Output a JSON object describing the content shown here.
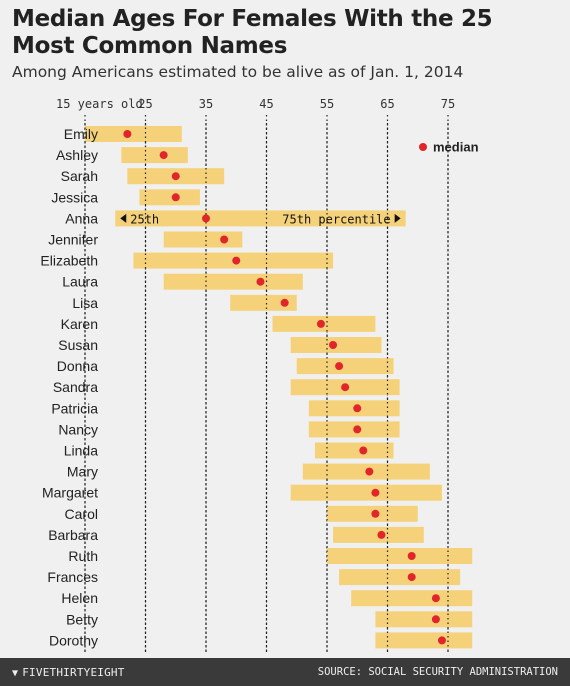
{
  "title": "Median Ages For Females With the 25 Most Common Names",
  "subtitle": "Among Americans estimated to be alive as of Jan. 1, 2014",
  "footer": {
    "brand": "FIVETHIRTYEIGHT",
    "source": "SOURCE: SOCIAL SECURITY ADMINISTRATION"
  },
  "colors": {
    "bar": "#f5d27a",
    "median_dot": "#e0262b",
    "background": "#f0f0f0",
    "footer": "#3a3a3a"
  },
  "chart_data": {
    "type": "bar",
    "orientation": "horizontal-range",
    "x_ticks": [
      {
        "value": 15,
        "label": "15 years old"
      },
      {
        "value": 25,
        "label": "25"
      },
      {
        "value": 35,
        "label": "35"
      },
      {
        "value": 45,
        "label": "45"
      },
      {
        "value": 55,
        "label": "55"
      },
      {
        "value": 65,
        "label": "65"
      },
      {
        "value": 75,
        "label": "75"
      }
    ],
    "xlim": [
      15,
      80
    ],
    "grid": "dotted-vertical",
    "legend": {
      "median_label": "median",
      "placement": "top-right"
    },
    "annotation": {
      "row": "Anna",
      "left_label": "25th",
      "right_label": "75th percentile"
    },
    "categories": [
      "Emily",
      "Ashley",
      "Sarah",
      "Jessica",
      "Anna",
      "Jennifer",
      "Elizabeth",
      "Laura",
      "Lisa",
      "Karen",
      "Susan",
      "Donna",
      "Sandra",
      "Patricia",
      "Nancy",
      "Linda",
      "Mary",
      "Margaret",
      "Carol",
      "Barbara",
      "Ruth",
      "Frances",
      "Helen",
      "Betty",
      "Dorothy"
    ],
    "p25": [
      15,
      21,
      22,
      24,
      20,
      28,
      23,
      28,
      39,
      46,
      49,
      50,
      49,
      52,
      52,
      53,
      51,
      49,
      55,
      56,
      55,
      57,
      59,
      63,
      63
    ],
    "median": [
      22,
      28,
      30,
      30,
      35,
      38,
      40,
      44,
      48,
      54,
      56,
      57,
      58,
      60,
      60,
      61,
      62,
      63,
      63,
      64,
      69,
      69,
      73,
      73,
      74
    ],
    "p75": [
      31,
      32,
      38,
      34,
      68,
      41,
      56,
      51,
      50,
      63,
      64,
      66,
      67,
      67,
      67,
      66,
      72,
      74,
      70,
      71,
      79,
      77,
      79,
      79,
      79
    ]
  }
}
